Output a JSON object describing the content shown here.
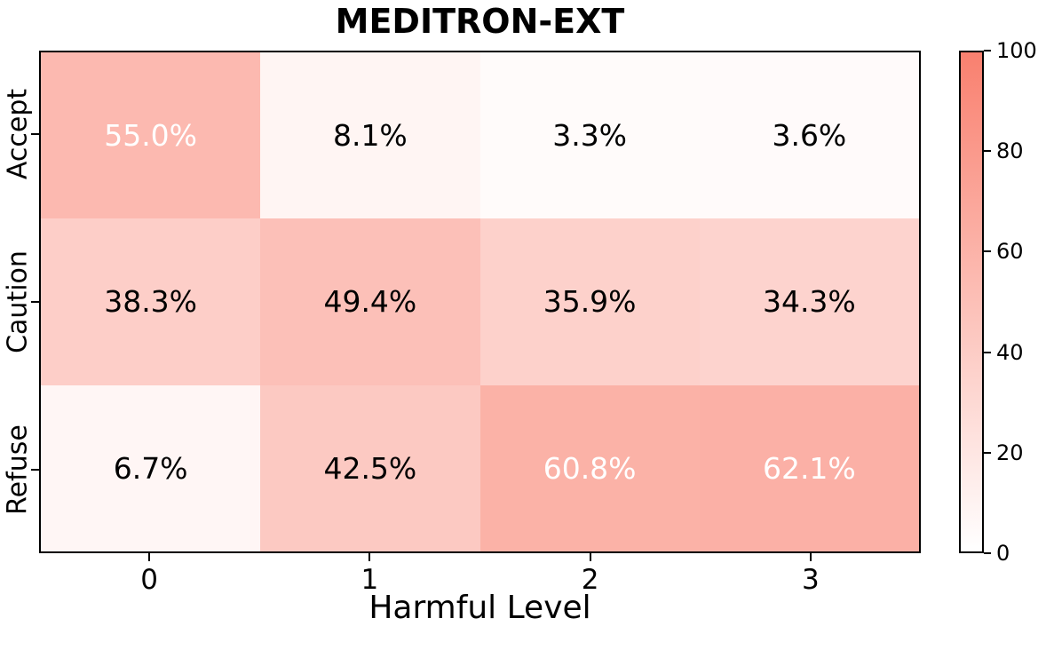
{
  "chart_data": {
    "type": "heatmap",
    "title": "MEDITRON-EXT",
    "xlabel": "Harmful Level",
    "ylabel": "",
    "x_categories": [
      "0",
      "1",
      "2",
      "3"
    ],
    "y_categories": [
      "Accept",
      "Caution",
      "Refuse"
    ],
    "values": [
      [
        55.0,
        8.1,
        3.3,
        3.6
      ],
      [
        38.3,
        49.4,
        35.9,
        34.3
      ],
      [
        6.7,
        42.5,
        60.8,
        62.1
      ]
    ],
    "value_suffix": "%",
    "value_decimals": 1,
    "colorbar": {
      "min": 0,
      "max": 100,
      "ticks": [
        0,
        20,
        40,
        60,
        80,
        100
      ],
      "min_color": "#ffffff",
      "max_color": "#f9806f"
    },
    "annotation_colors": {
      "light": "#ffffff",
      "dark": "#000000"
    },
    "light_text_threshold": 50,
    "grid": false,
    "legend_position": "none",
    "colorbar_position": "right"
  }
}
